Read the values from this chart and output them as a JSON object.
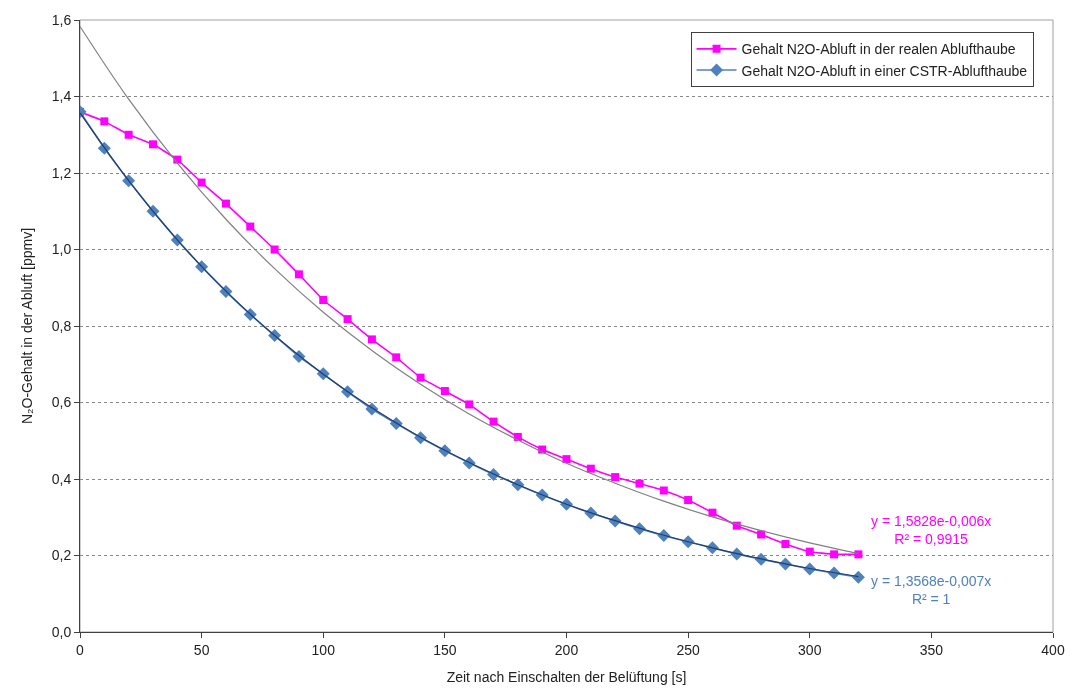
{
  "chart_data": {
    "type": "line",
    "xlabel": "Zeit nach Einschalten der Belüftung [s]",
    "ylabel": "N₂O-Gehalt in der Abluft [ppmv]",
    "x": [
      0,
      10,
      20,
      30,
      40,
      50,
      60,
      70,
      80,
      90,
      100,
      110,
      120,
      130,
      140,
      150,
      160,
      170,
      180,
      190,
      200,
      210,
      220,
      230,
      240,
      250,
      260,
      270,
      280,
      290,
      300,
      310,
      320
    ],
    "series": [
      {
        "name": "Gehalt N2O-Abluft in der realen Ablufthaube",
        "color": "#ff00ff",
        "marker": "square",
        "values": [
          1.36,
          1.335,
          1.3,
          1.275,
          1.235,
          1.175,
          1.12,
          1.06,
          1.0,
          0.935,
          0.868,
          0.818,
          0.765,
          0.718,
          0.665,
          0.63,
          0.595,
          0.55,
          0.51,
          0.477,
          0.452,
          0.427,
          0.405,
          0.388,
          0.37,
          0.345,
          0.312,
          0.278,
          0.255,
          0.23,
          0.21,
          0.203,
          0.203
        ]
      },
      {
        "name": "Gehalt N2O-Abluft in einer CSTR-Ablufthaube",
        "color": "#4f81bd",
        "marker": "diamond",
        "values": [
          1.36,
          1.265,
          1.18,
          1.1,
          1.025,
          0.955,
          0.89,
          0.83,
          0.775,
          0.72,
          0.675,
          0.628,
          0.583,
          0.545,
          0.508,
          0.474,
          0.442,
          0.412,
          0.385,
          0.358,
          0.334,
          0.311,
          0.29,
          0.27,
          0.252,
          0.236,
          0.22,
          0.204,
          0.19,
          0.178,
          0.165,
          0.154,
          0.143
        ]
      },
      {
        "type": "line",
        "color": "#808080",
        "marker": "none",
        "x": [
          0,
          20,
          40,
          60,
          80,
          100,
          120,
          140,
          160,
          180,
          200,
          220,
          240,
          260,
          280,
          300,
          320
        ],
        "values": [
          1.583,
          1.393,
          1.226,
          1.079,
          0.95,
          0.836,
          0.736,
          0.648,
          0.57,
          0.502,
          0.441,
          0.389,
          0.342,
          0.301,
          0.265,
          0.233,
          0.205
        ]
      },
      {
        "type": "line",
        "color": "#1f3f6f",
        "marker": "none",
        "x": [
          0,
          20,
          40,
          60,
          80,
          100,
          120,
          140,
          160,
          180,
          200,
          220,
          240,
          260,
          280,
          300,
          320
        ],
        "values": [
          1.357,
          1.18,
          1.025,
          0.891,
          0.775,
          0.674,
          0.586,
          0.509,
          0.443,
          0.385,
          0.334,
          0.291,
          0.253,
          0.22,
          0.191,
          0.166,
          0.145
        ]
      }
    ],
    "annotations": [
      "y = 1,5828e-0,006x\nR² = 0,9915",
      "y = 1,3568e-0,007x\nR² = 1"
    ],
    "xlim": [
      0,
      400
    ],
    "xticks": [
      0,
      50,
      100,
      150,
      200,
      250,
      300,
      350,
      400
    ],
    "ylim": [
      0,
      1.6
    ],
    "yticks": [
      {
        "value": 0,
        "label": "0,0"
      },
      {
        "value": 0.2,
        "label": "0,2"
      },
      {
        "value": 0.4,
        "label": "0,4"
      },
      {
        "value": 0.6,
        "label": "0,6"
      },
      {
        "value": 0.8,
        "label": "0,8"
      },
      {
        "value": 1.0,
        "label": "1,0"
      },
      {
        "value": 1.2,
        "label": "1,2"
      },
      {
        "value": 1.4,
        "label": "1,4"
      },
      {
        "value": 1.6,
        "label": "1,6"
      }
    ],
    "grid": "y",
    "legend": "top right"
  }
}
